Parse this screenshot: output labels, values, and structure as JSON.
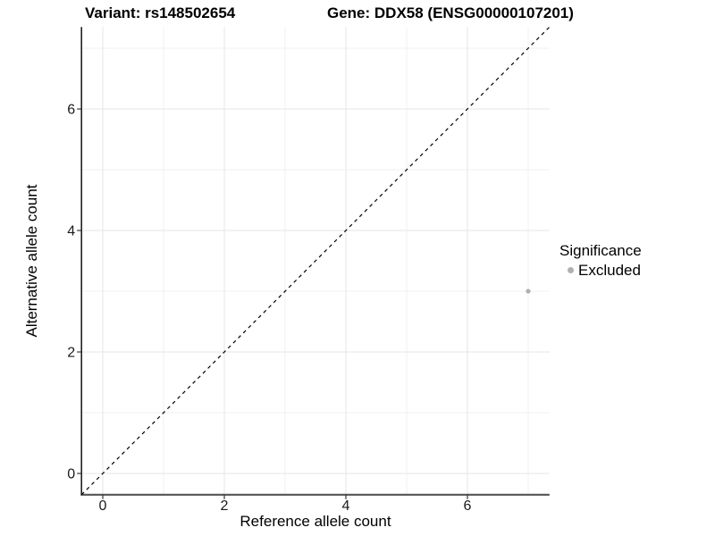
{
  "header": {
    "variant_title": "Variant: rs148502654",
    "gene_title": "Gene: DDX58 (ENSG00000107201)"
  },
  "chart_data": {
    "type": "scatter",
    "xlabel": "Reference allele count",
    "ylabel": "Alternative allele count",
    "xlim": [
      -0.35,
      7.35
    ],
    "ylim": [
      -0.35,
      7.35
    ],
    "x_ticks": [
      0,
      2,
      4,
      6
    ],
    "y_ticks": [
      0,
      2,
      4,
      6
    ],
    "x_minor_ticks": [
      1,
      3,
      5,
      7
    ],
    "y_minor_ticks": [
      1,
      3,
      5,
      7
    ],
    "grid": "major and minor gridlines on white background",
    "series": [
      {
        "name": "Excluded",
        "points": [
          {
            "x": 7,
            "y": 3
          }
        ],
        "color": "#b0b0b0"
      }
    ],
    "identity_line": {
      "slope": 1,
      "intercept": 0,
      "style": "dashed",
      "color": "#000000"
    },
    "legend": {
      "title": "Significance",
      "position": "right",
      "items": [
        {
          "label": "Excluded",
          "color": "#b0b0b0"
        }
      ]
    },
    "colors": {
      "grid_major": "#e6e6e6",
      "grid_minor": "#f1f1f1",
      "y_axis_line": "#222222",
      "x_axis_line": "#555555",
      "tick_mark": "#333333",
      "tick_label": "#1a1a1a",
      "point": "#b0b0b0"
    }
  }
}
